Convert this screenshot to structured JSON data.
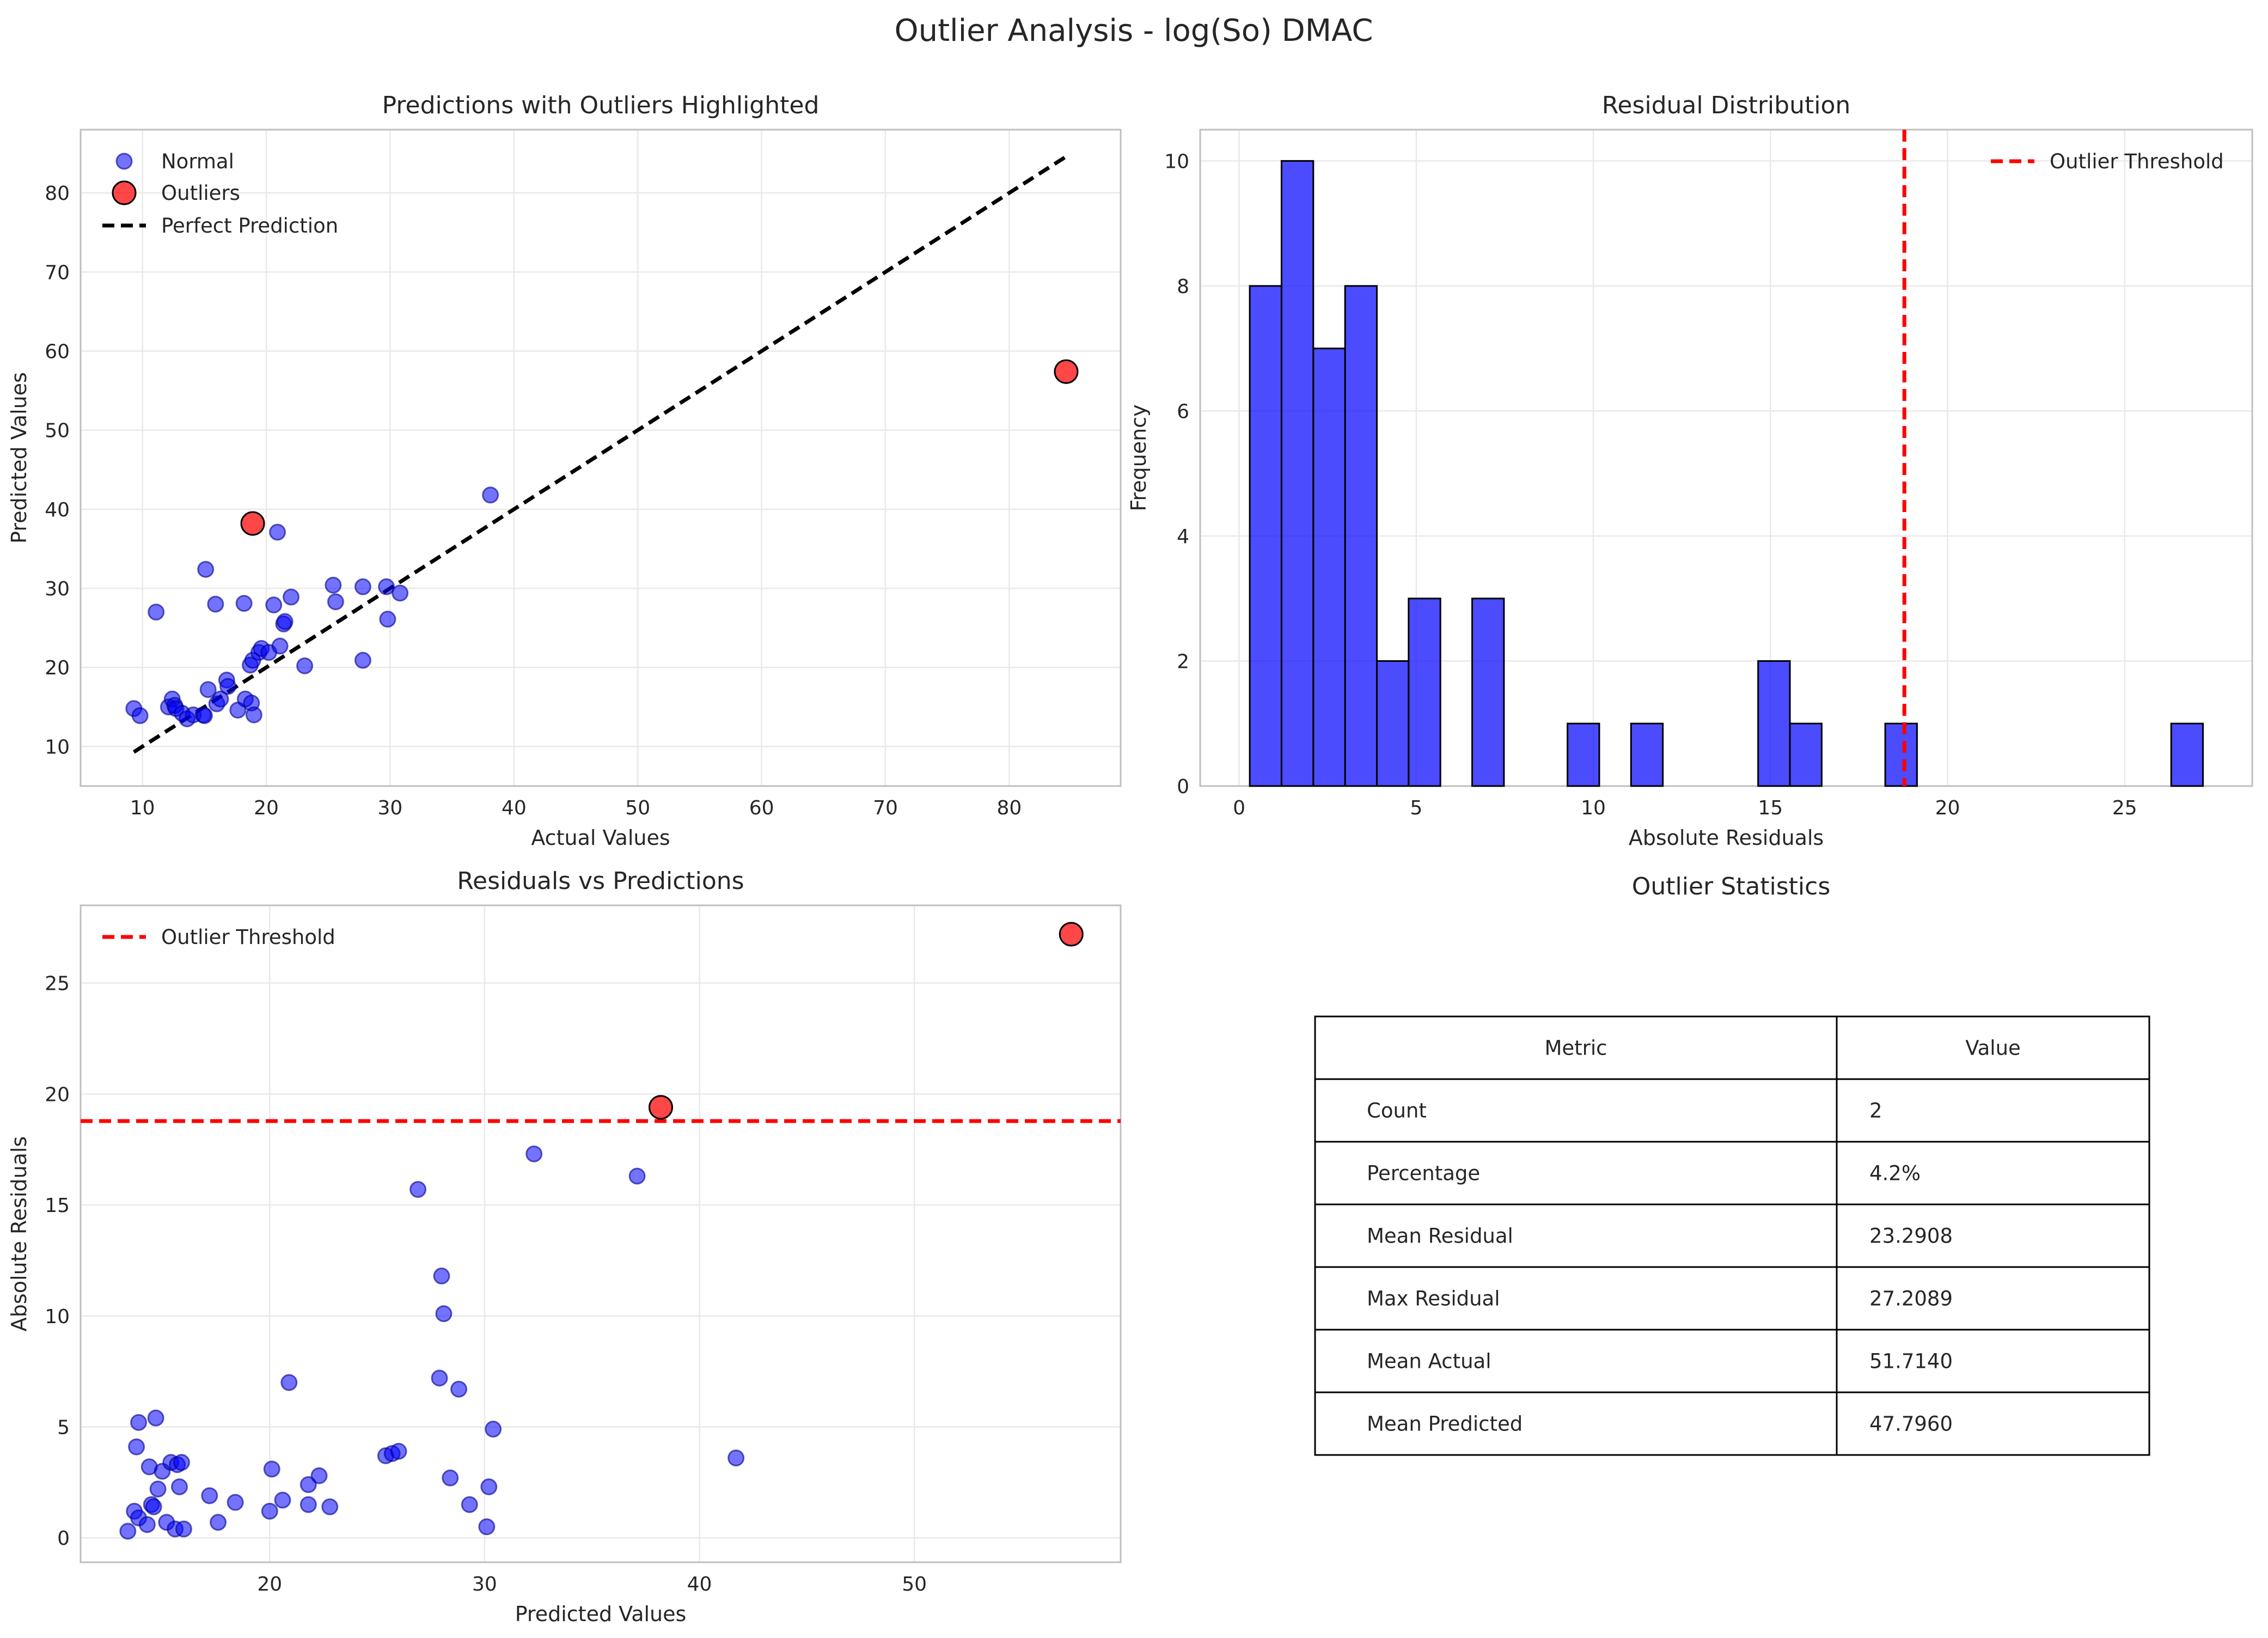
{
  "figure": {
    "suptitle": "Outlier Analysis - log(So) DMAC"
  },
  "colors": {
    "normal": "#0000ff",
    "outlier": "#ff0000",
    "threshold": "#ff0000",
    "perfect": "#000000",
    "grid": "#e9e9e9",
    "spine": "#bfbfbf"
  },
  "chart_data": [
    {
      "type": "scatter",
      "title": "Predictions with Outliers Highlighted",
      "xlabel": "Actual Values",
      "ylabel": "Predicted Values",
      "xlim": [
        5,
        89
      ],
      "ylim": [
        5,
        88
      ],
      "xticks": [
        10,
        20,
        30,
        40,
        50,
        60,
        70,
        80
      ],
      "yticks": [
        10,
        20,
        30,
        40,
        50,
        60,
        70,
        80
      ],
      "grid": true,
      "legend": "top-left",
      "legend_entries": [
        "Normal",
        "Outliers",
        "Perfect Prediction"
      ],
      "series": [
        {
          "name": "Normal",
          "x": [
            9.3,
            9.8,
            11.1,
            12.1,
            12.4,
            12.6,
            12.7,
            13.2,
            13.6,
            14.1,
            14.9,
            15.0,
            15.1,
            15.3,
            15.9,
            16.0,
            16.3,
            16.8,
            16.9,
            17.7,
            18.2,
            18.3,
            18.7,
            18.8,
            18.9,
            19.0,
            19.4,
            19.6,
            20.2,
            20.6,
            20.9,
            21.1,
            21.4,
            21.5,
            22.0,
            23.1,
            25.4,
            25.6,
            27.8,
            27.8,
            29.7,
            29.8,
            30.8,
            38.1
          ],
          "y": [
            14.8,
            13.9,
            27.0,
            15.0,
            16.0,
            15.2,
            14.8,
            14.2,
            13.5,
            14.0,
            14.0,
            13.9,
            32.4,
            17.2,
            28.0,
            15.4,
            16.0,
            18.4,
            17.6,
            14.6,
            28.1,
            16.0,
            20.3,
            15.5,
            20.9,
            14.0,
            21.9,
            22.4,
            21.9,
            27.9,
            37.1,
            22.7,
            25.5,
            25.8,
            28.9,
            20.2,
            30.4,
            28.3,
            20.9,
            30.2,
            30.2,
            26.1,
            29.4,
            41.8
          ]
        },
        {
          "name": "Outliers",
          "x": [
            18.9,
            84.6
          ],
          "y": [
            38.2,
            57.4
          ]
        },
        {
          "name": "Perfect Prediction",
          "x": [
            9.3,
            84.6
          ],
          "y": [
            9.3,
            84.6
          ]
        }
      ]
    },
    {
      "type": "bar",
      "title": "Residual Distribution",
      "xlabel": "Absolute Residuals",
      "ylabel": "Frequency",
      "xlim": [
        -1.1,
        28.6
      ],
      "ylim": [
        0,
        10.5
      ],
      "xticks": [
        0,
        5,
        10,
        15,
        20,
        25
      ],
      "yticks": [
        0,
        2,
        4,
        6,
        8,
        10
      ],
      "grid": true,
      "legend": "top-right",
      "bin_start": 0.3,
      "bin_width": 0.897,
      "counts": [
        8,
        10,
        7,
        8,
        2,
        3,
        0,
        3,
        0,
        0,
        1,
        0,
        1,
        0,
        0,
        0,
        2,
        1,
        0,
        0,
        1,
        0,
        0,
        0,
        0,
        0,
        0,
        0,
        0,
        1
      ],
      "threshold": {
        "name": "Outlier Threshold",
        "value": 18.78
      }
    },
    {
      "type": "scatter",
      "title": "Residuals vs Predictions",
      "xlabel": "Predicted Values",
      "ylabel": "Absolute Residuals",
      "xlim": [
        11.2,
        59.6
      ],
      "ylim": [
        -1.1,
        28.5
      ],
      "xticks": [
        20,
        30,
        40,
        50
      ],
      "yticks": [
        0,
        5,
        10,
        15,
        20,
        25
      ],
      "grid": true,
      "legend": "top-left",
      "series": [
        {
          "name": "Normal",
          "x": [
            13.4,
            13.7,
            13.9,
            13.8,
            13.9,
            14.3,
            14.4,
            14.5,
            14.6,
            14.7,
            14.8,
            15.0,
            15.2,
            15.4,
            15.6,
            15.7,
            15.8,
            15.9,
            16.0,
            17.2,
            17.6,
            18.4,
            20.0,
            20.1,
            20.6,
            20.9,
            21.8,
            21.8,
            22.3,
            22.8,
            25.4,
            25.7,
            26.0,
            26.9,
            27.9,
            28.0,
            28.1,
            28.4,
            28.8,
            29.3,
            30.1,
            30.2,
            30.4,
            32.3,
            37.1,
            41.7
          ],
          "y": [
            0.3,
            1.2,
            0.9,
            4.1,
            5.2,
            0.6,
            3.2,
            1.5,
            1.4,
            5.4,
            2.2,
            3.0,
            0.7,
            3.4,
            0.4,
            3.3,
            2.3,
            3.4,
            0.4,
            1.9,
            0.7,
            1.6,
            1.2,
            3.1,
            1.7,
            7.0,
            1.5,
            2.4,
            2.8,
            1.4,
            3.7,
            3.8,
            3.9,
            15.7,
            7.2,
            11.8,
            10.1,
            2.7,
            6.7,
            1.5,
            0.5,
            2.3,
            4.9,
            17.3,
            16.3,
            3.6
          ]
        },
        {
          "name": "Outliers",
          "x": [
            38.2,
            57.3
          ],
          "y": [
            19.4,
            27.2
          ]
        }
      ],
      "threshold": {
        "name": "Outlier Threshold",
        "value": 18.78
      }
    },
    {
      "type": "table",
      "title": "Outlier Statistics",
      "columns": [
        "Metric",
        "Value"
      ],
      "rows": [
        [
          "Count",
          "2"
        ],
        [
          "Percentage",
          "4.2%"
        ],
        [
          "Mean Residual",
          "23.2908"
        ],
        [
          "Max Residual",
          "27.2089"
        ],
        [
          "Mean Actual",
          "51.7140"
        ],
        [
          "Mean Predicted",
          "47.7960"
        ]
      ]
    }
  ]
}
